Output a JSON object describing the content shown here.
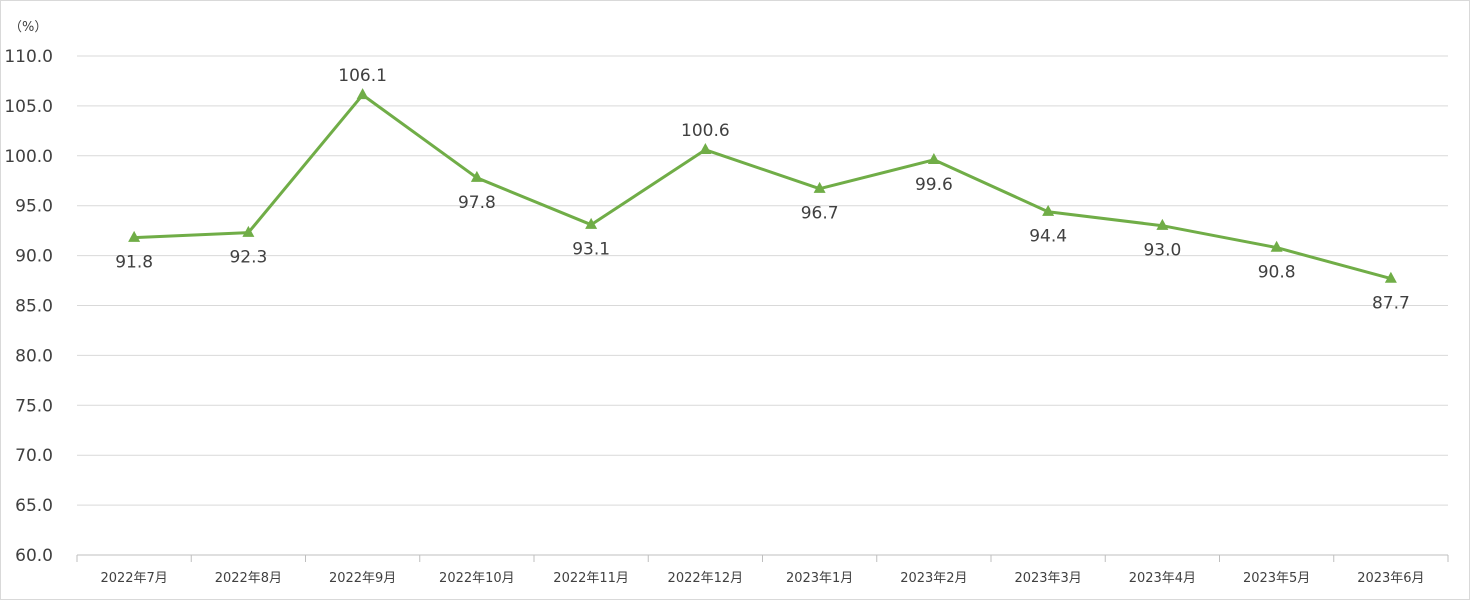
{
  "chart_data": {
    "type": "line",
    "title": "",
    "xlabel": "",
    "ylabel": "（%）",
    "ylim": [
      60,
      110
    ],
    "ytick_step": 5,
    "grid": true,
    "legend": "none",
    "categories": [
      "2022年7月",
      "2022年8月",
      "2022年9月",
      "2022年10月",
      "2022年11月",
      "2022年12月",
      "2023年1月",
      "2023年2月",
      "2023年3月",
      "2023年4月",
      "2023年5月",
      "2023年6月"
    ],
    "series": [
      {
        "name": "series-1",
        "marker": "triangle",
        "color": "#70ad47",
        "values": [
          91.8,
          92.3,
          106.1,
          97.8,
          93.1,
          100.6,
          96.7,
          99.6,
          94.4,
          93.0,
          90.8,
          87.7
        ],
        "labels": [
          "91.8",
          "92.3",
          "106.1",
          "97.8",
          "93.1",
          "100.6",
          "96.7",
          "99.6",
          "94.4",
          "93.0",
          "90.8",
          "87.7"
        ],
        "label_positions": [
          "below",
          "below",
          "above",
          "below",
          "below",
          "above",
          "below",
          "below",
          "below",
          "below",
          "below",
          "below"
        ]
      }
    ],
    "y_tick_labels": [
      "110.0",
      "105.0",
      "100.0",
      "95.0",
      "90.0",
      "85.0",
      "80.0",
      "75.0",
      "70.0",
      "65.0",
      "60.0"
    ]
  },
  "colors": {
    "line": "#70ad47",
    "grid": "#d9d9d9",
    "axis": "#bfbfbf",
    "text": "#404040"
  }
}
